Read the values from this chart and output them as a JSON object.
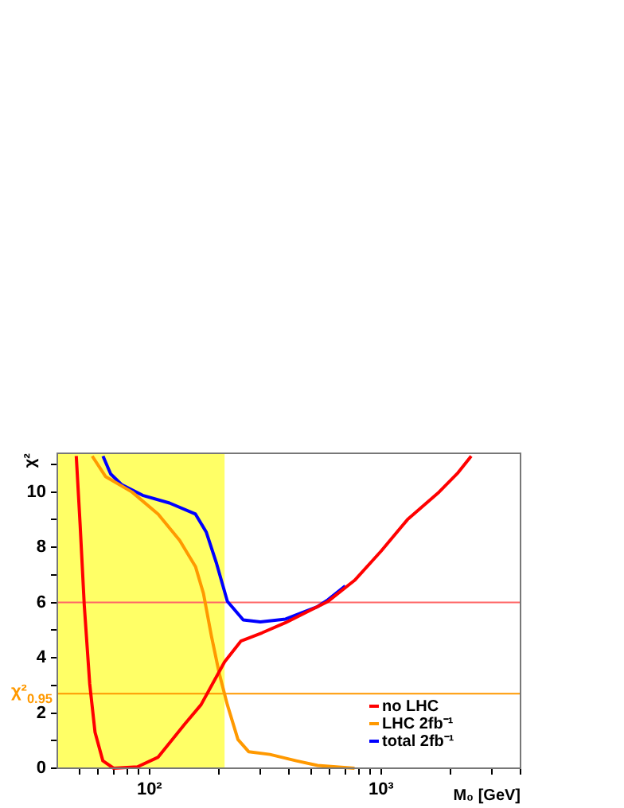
{
  "chart_data": {
    "type": "line",
    "xlabel": "M₀ [GeV]",
    "ylabel": "χ²",
    "log": "x",
    "xlim": [
      40,
      4000
    ],
    "xticks": [
      {
        "value": 50,
        "label": null
      },
      {
        "value": 60,
        "label": null
      },
      {
        "value": 70,
        "label": null
      },
      {
        "value": 80,
        "label": null
      },
      {
        "value": 90,
        "label": null
      },
      {
        "value": 100,
        "label": "10²"
      },
      {
        "value": 200,
        "label": null
      },
      {
        "value": 300,
        "label": null
      },
      {
        "value": 400,
        "label": null
      },
      {
        "value": 500,
        "label": null
      },
      {
        "value": 600,
        "label": null
      },
      {
        "value": 700,
        "label": null
      },
      {
        "value": 800,
        "label": null
      },
      {
        "value": 900,
        "label": null
      },
      {
        "value": 1000,
        "label": "10³"
      },
      {
        "value": 2000,
        "label": null
      },
      {
        "value": 3000,
        "label": null
      },
      {
        "value": 4000,
        "label": null
      }
    ],
    "ylim": [
      0,
      11.4
    ],
    "yticks": [
      0,
      {
        "value": 1,
        "label": null
      },
      2,
      {
        "value": 3,
        "label": null
      },
      4,
      {
        "value": 5,
        "label": null
      },
      6,
      {
        "value": 7,
        "label": null
      },
      8,
      {
        "value": 9,
        "label": null
      },
      10,
      {
        "value": 11,
        "label": null
      }
    ],
    "series": [
      {
        "name": "no LHC",
        "color": "#ff0000",
        "x": [
          48.3,
          50.2,
          52.3,
          55.2,
          58.2,
          62.9,
          70,
          88.7,
          109,
          142,
          167,
          211,
          248,
          306,
          387,
          532,
          590,
          768,
          1000,
          1300,
          1780,
          2150,
          2450
        ],
        "values": [
          11.3,
          8.8,
          5.9,
          3.06,
          1.3,
          0.27,
          0,
          0.05,
          0.4,
          1.6,
          2.3,
          3.85,
          4.6,
          4.9,
          5.27,
          5.85,
          6.04,
          6.8,
          7.86,
          9.0,
          10.0,
          10.7,
          11.3
        ]
      },
      {
        "name": "LHC 2fb⁻¹",
        "color": "#ff9900",
        "x": [
          56.6,
          64.6,
          84,
          109,
          135,
          158,
          171,
          185,
          200,
          217,
          241,
          268,
          331,
          430,
          532,
          768
        ],
        "values": [
          11.3,
          10.56,
          10.0,
          9.2,
          8.25,
          7.3,
          6.33,
          4.8,
          3.44,
          2.29,
          1.04,
          0.6,
          0.5,
          0.27,
          0.1,
          0
        ]
      },
      {
        "name": "total 2fb⁻¹",
        "color": "#0000ff",
        "x": [
          63,
          68,
          75.7,
          93.4,
          122,
          158,
          176,
          195,
          217,
          254,
          301,
          387,
          532,
          590,
          700
        ],
        "values": [
          11.3,
          10.65,
          10.27,
          9.88,
          9.6,
          9.2,
          8.54,
          7.4,
          6.04,
          5.37,
          5.3,
          5.4,
          5.85,
          6.1,
          6.6
        ]
      }
    ],
    "bands": [
      {
        "axis": "x",
        "from": 40,
        "to": 211,
        "color": "#ffff66"
      }
    ],
    "ref_lines": [
      {
        "axis": "y",
        "value": 6,
        "color": "#ff6666"
      },
      {
        "axis": "y",
        "value": 2.7,
        "color": "#ff9900",
        "label": "χ²$_{0.95}$"
      }
    ],
    "legend": "bottom right",
    "grid": false,
    "marker": "none",
    "line_style": "solid"
  }
}
